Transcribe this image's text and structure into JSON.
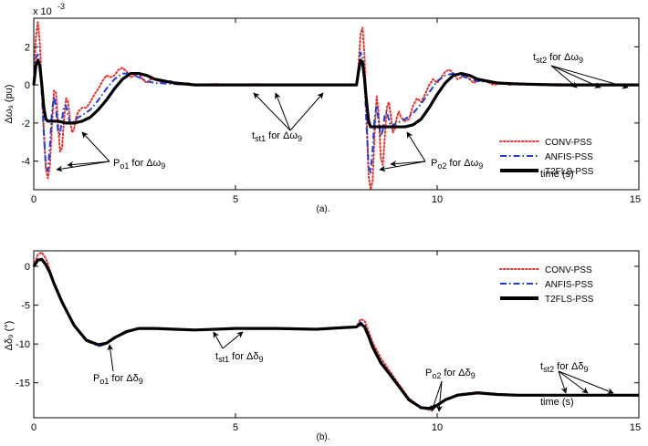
{
  "chart_data": [
    {
      "type": "line",
      "panel_label": "(a).",
      "ylabel": "Δω₉ (pu)",
      "y_multiplier": "x 10",
      "y_multiplier_exp": "-3",
      "xlabel": "time (s)",
      "xlim": [
        0,
        15
      ],
      "ylim": [
        -5.5,
        3.5
      ],
      "xticks": [
        0,
        5,
        10,
        15
      ],
      "xtick_labels": [
        "0",
        "5",
        "10",
        "15"
      ],
      "yticks": [
        2,
        0,
        -2,
        -4
      ],
      "ytick_labels": [
        "2",
        "0",
        "-2",
        "-4"
      ],
      "grid": false,
      "legend_position": "right",
      "annotations": {
        "po1": {
          "base": "P",
          "sub": "o1",
          "rest": " for Δω",
          "sub2": "9"
        },
        "tst1": {
          "base": "t",
          "sub": "st1",
          "rest": " for Δω",
          "sub2": "9"
        },
        "po2": {
          "base": "P",
          "sub": "o2",
          "rest": " for Δω",
          "sub2": "9"
        },
        "tst2": {
          "base": "t",
          "sub": "st2",
          "rest": " for Δω",
          "sub2": "9"
        }
      },
      "series": [
        {
          "name": "CONV-PSS",
          "color": "#e8312a",
          "style": "dotted",
          "x": [
            0,
            0.05,
            0.1,
            0.15,
            0.2,
            0.25,
            0.3,
            0.35,
            0.4,
            0.45,
            0.5,
            0.55,
            0.6,
            0.65,
            0.7,
            0.75,
            0.8,
            0.85,
            0.9,
            0.95,
            1.0,
            1.05,
            1.1,
            1.2,
            1.3,
            1.4,
            1.5,
            1.6,
            1.7,
            1.8,
            1.9,
            2.0,
            2.1,
            2.2,
            2.3,
            2.4,
            2.5,
            2.6,
            2.7,
            2.8,
            2.9,
            3.0,
            3.2,
            3.4,
            3.6,
            3.8,
            4.0,
            4.5,
            5.0,
            5.5,
            6.0,
            7.0,
            8.0,
            8.05,
            8.1,
            8.15,
            8.2,
            8.25,
            8.3,
            8.35,
            8.4,
            8.45,
            8.5,
            8.55,
            8.6,
            8.65,
            8.7,
            8.75,
            8.8,
            8.85,
            8.9,
            8.95,
            9.0,
            9.05,
            9.1,
            9.2,
            9.3,
            9.4,
            9.5,
            9.6,
            9.7,
            9.8,
            9.9,
            10.0,
            10.1,
            10.2,
            10.3,
            10.4,
            10.5,
            10.6,
            10.7,
            10.8,
            10.9,
            11.0,
            11.2,
            11.4,
            11.6,
            11.8,
            12.0,
            12.5,
            13.0,
            13.5,
            14.0,
            14.5,
            15.0
          ],
          "y": [
            0,
            2.5,
            3.3,
            2.2,
            0.0,
            -2.5,
            -4.4,
            -4.9,
            -4.2,
            -2.2,
            -0.3,
            -0.4,
            -2.0,
            -3.5,
            -3.3,
            -1.8,
            -0.7,
            -0.9,
            -1.9,
            -2.5,
            -2.3,
            -1.7,
            -1.4,
            -1.2,
            -1.2,
            -0.9,
            -0.5,
            -0.2,
            0.2,
            0.5,
            0.4,
            0.5,
            0.8,
            0.9,
            0.7,
            0.4,
            0.5,
            0.6,
            0.3,
            0.1,
            0.3,
            0.3,
            0.1,
            0.2,
            0.0,
            0.1,
            0.0,
            0.05,
            0.0,
            0.05,
            0.0,
            0.0,
            0.0,
            1.0,
            2.7,
            3.0,
            1.5,
            -1.5,
            -4.8,
            -5.5,
            -5.0,
            -2.5,
            -0.6,
            -1.5,
            -3.8,
            -4.2,
            -2.8,
            -1.2,
            -0.9,
            -1.6,
            -2.5,
            -2.3,
            -1.7,
            -1.4,
            -1.7,
            -1.9,
            -1.8,
            -1.1,
            -0.7,
            -0.9,
            -0.5,
            0.0,
            0.3,
            0.1,
            0.4,
            0.7,
            0.8,
            0.6,
            0.3,
            0.4,
            0.5,
            0.3,
            0.1,
            0.2,
            0.2,
            0.0,
            0.1,
            0.0,
            0.1,
            0.0,
            0.05,
            0.0,
            0.05,
            0.0,
            0.0
          ]
        },
        {
          "name": "ANFIS-PSS",
          "color": "#1d3fd6",
          "style": "dashdot",
          "x": [
            0,
            0.05,
            0.1,
            0.15,
            0.2,
            0.25,
            0.3,
            0.35,
            0.4,
            0.45,
            0.5,
            0.55,
            0.6,
            0.65,
            0.7,
            0.75,
            0.8,
            0.85,
            0.9,
            0.95,
            1.0,
            1.1,
            1.2,
            1.4,
            1.6,
            1.8,
            2.0,
            2.2,
            2.4,
            2.6,
            2.8,
            3.0,
            3.5,
            4.0,
            5.0,
            6.0,
            7.0,
            8.0,
            8.05,
            8.1,
            8.15,
            8.2,
            8.25,
            8.3,
            8.35,
            8.4,
            8.45,
            8.5,
            8.55,
            8.6,
            8.65,
            8.7,
            8.75,
            8.8,
            8.85,
            8.9,
            9.0,
            9.1,
            9.2,
            9.4,
            9.6,
            9.8,
            10.0,
            10.2,
            10.4,
            10.6,
            10.8,
            11.0,
            11.5,
            12.0,
            13.0,
            14.0,
            15.0
          ],
          "y": [
            0,
            1.4,
            1.6,
            1.0,
            -0.5,
            -2.6,
            -4.3,
            -4.5,
            -3.2,
            -1.4,
            -0.6,
            -1.2,
            -2.4,
            -2.6,
            -1.8,
            -1.1,
            -1.1,
            -1.6,
            -2.0,
            -2.0,
            -1.9,
            -1.7,
            -1.6,
            -1.3,
            -0.8,
            -0.2,
            0.3,
            0.6,
            0.6,
            0.4,
            0.2,
            0.1,
            0.05,
            0.0,
            0.0,
            0.0,
            0.0,
            0.0,
            0.9,
            1.7,
            1.5,
            0.2,
            -2.2,
            -4.3,
            -4.6,
            -3.4,
            -1.7,
            -1.1,
            -1.9,
            -2.7,
            -2.4,
            -1.6,
            -1.4,
            -1.8,
            -2.2,
            -2.1,
            -2.0,
            -1.9,
            -1.8,
            -1.5,
            -1.0,
            -0.4,
            0.2,
            0.5,
            0.6,
            0.5,
            0.3,
            0.2,
            0.1,
            0.05,
            0.0,
            0.0,
            0.0
          ]
        },
        {
          "name": "T2FLS-PSS",
          "color": "#000000",
          "style": "solid",
          "x": [
            0,
            0.05,
            0.1,
            0.15,
            0.2,
            0.25,
            0.3,
            0.35,
            0.4,
            0.5,
            0.6,
            0.8,
            1.0,
            1.2,
            1.4,
            1.6,
            1.8,
            2.0,
            2.2,
            2.4,
            2.6,
            2.8,
            3.0,
            3.5,
            4.0,
            5.0,
            6.0,
            7.0,
            8.0,
            8.05,
            8.1,
            8.15,
            8.2,
            8.25,
            8.3,
            8.35,
            8.4,
            8.5,
            8.7,
            9.0,
            9.2,
            9.4,
            9.6,
            9.8,
            10.0,
            10.2,
            10.4,
            10.6,
            10.8,
            11.0,
            11.5,
            12.0,
            13.0,
            14.0,
            15.0
          ],
          "y": [
            0,
            1.0,
            1.3,
            1.0,
            0.0,
            -1.2,
            -1.8,
            -1.9,
            -1.9,
            -1.9,
            -1.9,
            -2.0,
            -2.0,
            -1.9,
            -1.7,
            -1.3,
            -0.8,
            -0.2,
            0.3,
            0.6,
            0.6,
            0.5,
            0.3,
            0.1,
            0.0,
            0.0,
            0.0,
            0.0,
            0.0,
            0.7,
            1.3,
            1.2,
            0.3,
            -0.9,
            -1.9,
            -2.2,
            -2.2,
            -2.2,
            -2.2,
            -2.2,
            -2.2,
            -2.1,
            -1.8,
            -1.2,
            -0.5,
            0.1,
            0.5,
            0.6,
            0.5,
            0.3,
            0.1,
            0.05,
            0.0,
            0.0,
            0.0
          ]
        }
      ]
    },
    {
      "type": "line",
      "panel_label": "(b).",
      "ylabel": "Δδ₉ (°)",
      "xlabel": "time (s)",
      "xlim": [
        0,
        15
      ],
      "ylim": [
        -19.5,
        2
      ],
      "xticks": [
        0,
        5,
        10,
        15
      ],
      "xtick_labels": [
        "0",
        "5",
        "10",
        "15"
      ],
      "yticks": [
        0,
        -5,
        -10,
        -15
      ],
      "ytick_labels": [
        "0",
        "-5",
        "-10",
        "-15"
      ],
      "grid": false,
      "legend_position": "top-right",
      "annotations": {
        "po1": {
          "base": "P",
          "sub": "o1",
          "rest": " for Δδ",
          "sub2": "9"
        },
        "tst1": {
          "base": "t",
          "sub": "st1",
          "rest": " for Δδ",
          "sub2": "9"
        },
        "po2": {
          "base": "P",
          "sub": "o2",
          "rest": " for Δδ",
          "sub2": "9"
        },
        "tst2": {
          "base": "t",
          "sub": "st2",
          "rest": " for Δδ",
          "sub2": "9"
        }
      },
      "series": [
        {
          "name": "CONV-PSS",
          "color": "#e8312a",
          "style": "dotted",
          "x": [
            0,
            0.1,
            0.2,
            0.3,
            0.4,
            0.5,
            0.7,
            1.0,
            1.3,
            1.6,
            1.8,
            2.0,
            2.3,
            2.6,
            3.0,
            3.5,
            4.0,
            5.0,
            6.0,
            7.0,
            8.0,
            8.1,
            8.2,
            8.3,
            8.4,
            8.6,
            9.0,
            9.3,
            9.6,
            9.8,
            10.0,
            10.2,
            10.5,
            11.0,
            11.5,
            12.0,
            13.0,
            14.0,
            15.0
          ],
          "y": [
            0,
            1.5,
            1.8,
            1.0,
            -0.5,
            -2.0,
            -4.5,
            -7.5,
            -9.5,
            -10.2,
            -10.0,
            -9.2,
            -8.5,
            -8.0,
            -8.0,
            -8.1,
            -8.2,
            -8.0,
            -8.0,
            -8.1,
            -7.8,
            -6.8,
            -7.0,
            -8.4,
            -9.8,
            -11.8,
            -14.8,
            -17.0,
            -18.2,
            -18.5,
            -18.0,
            -17.2,
            -16.5,
            -16.2,
            -16.5,
            -16.6,
            -16.6,
            -16.6,
            -16.6
          ]
        },
        {
          "name": "ANFIS-PSS",
          "color": "#1d3fd6",
          "style": "dashdot",
          "x": [
            0,
            0.1,
            0.2,
            0.3,
            0.4,
            0.5,
            0.7,
            1.0,
            1.3,
            1.6,
            1.8,
            2.0,
            2.3,
            2.6,
            3.0,
            3.5,
            4.0,
            5.0,
            6.0,
            7.0,
            8.0,
            8.1,
            8.2,
            8.3,
            8.4,
            8.6,
            9.0,
            9.3,
            9.6,
            9.8,
            10.0,
            10.2,
            10.5,
            11.0,
            11.5,
            12.0,
            13.0,
            14.0,
            15.0
          ],
          "y": [
            0,
            0.8,
            1.0,
            0.3,
            -0.8,
            -2.2,
            -4.6,
            -7.6,
            -9.6,
            -10.3,
            -10.0,
            -9.3,
            -8.5,
            -8.0,
            -8.0,
            -8.1,
            -8.2,
            -8.0,
            -8.0,
            -8.1,
            -7.8,
            -7.2,
            -7.6,
            -8.8,
            -10.2,
            -12.2,
            -15.0,
            -17.2,
            -18.3,
            -18.4,
            -17.9,
            -17.2,
            -16.6,
            -16.3,
            -16.5,
            -16.6,
            -16.6,
            -16.6,
            -16.6
          ]
        },
        {
          "name": "T2FLS-PSS",
          "color": "#000000",
          "style": "solid",
          "x": [
            0,
            0.1,
            0.2,
            0.3,
            0.4,
            0.5,
            0.7,
            1.0,
            1.3,
            1.6,
            1.8,
            2.0,
            2.3,
            2.6,
            3.0,
            3.5,
            4.0,
            5.0,
            6.0,
            7.0,
            8.0,
            8.1,
            8.2,
            8.3,
            8.4,
            8.6,
            9.0,
            9.3,
            9.6,
            9.8,
            10.0,
            10.2,
            10.5,
            11.0,
            11.5,
            12.0,
            13.0,
            14.0,
            15.0
          ],
          "y": [
            0,
            0.8,
            0.9,
            0.2,
            -0.8,
            -2.2,
            -4.6,
            -7.6,
            -9.5,
            -10.1,
            -9.9,
            -9.2,
            -8.4,
            -8.0,
            -8.0,
            -8.1,
            -8.2,
            -8.0,
            -8.0,
            -8.1,
            -7.8,
            -7.4,
            -7.8,
            -9.0,
            -10.4,
            -12.4,
            -15.1,
            -17.2,
            -18.2,
            -18.3,
            -17.9,
            -17.2,
            -16.6,
            -16.3,
            -16.5,
            -16.6,
            -16.6,
            -16.6,
            -16.6
          ]
        }
      ]
    }
  ]
}
